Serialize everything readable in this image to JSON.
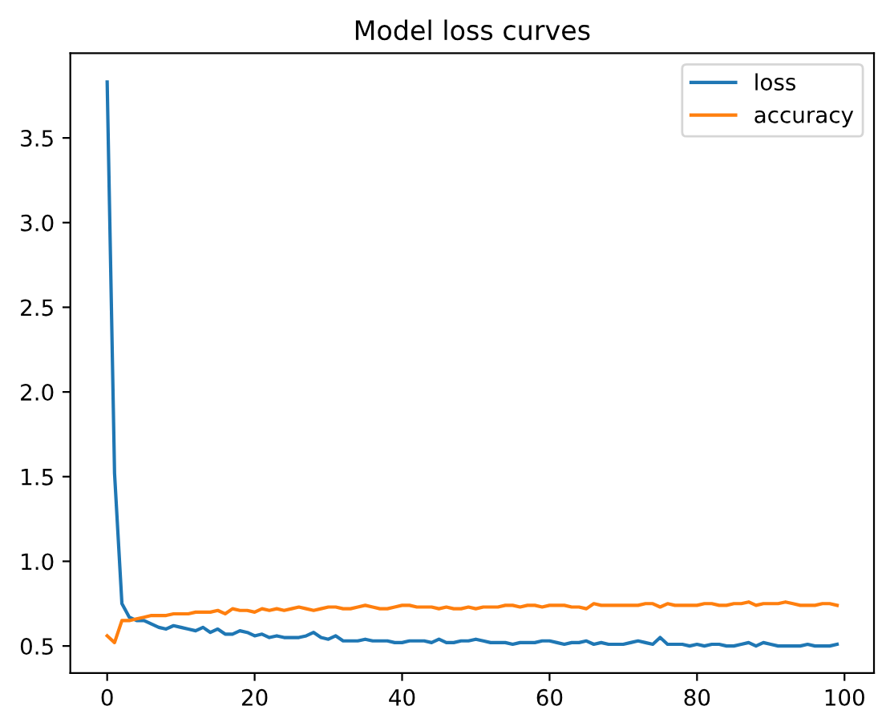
{
  "chart_data": {
    "type": "line",
    "title": "Model loss curves",
    "x": [
      0,
      1,
      2,
      3,
      4,
      5,
      6,
      7,
      8,
      9,
      10,
      11,
      12,
      13,
      14,
      15,
      16,
      17,
      18,
      19,
      20,
      21,
      22,
      23,
      24,
      25,
      26,
      27,
      28,
      29,
      30,
      31,
      32,
      33,
      34,
      35,
      36,
      37,
      38,
      39,
      40,
      41,
      42,
      43,
      44,
      45,
      46,
      47,
      48,
      49,
      50,
      51,
      52,
      53,
      54,
      55,
      56,
      57,
      58,
      59,
      60,
      61,
      62,
      63,
      64,
      65,
      66,
      67,
      68,
      69,
      70,
      71,
      72,
      73,
      74,
      75,
      76,
      77,
      78,
      79,
      80,
      81,
      82,
      83,
      84,
      85,
      86,
      87,
      88,
      89,
      90,
      91,
      92,
      93,
      94,
      95,
      96,
      97,
      98,
      99
    ],
    "series": [
      {
        "name": "loss",
        "color": "#1f77b4",
        "values": [
          3.83,
          1.52,
          0.75,
          0.67,
          0.65,
          0.65,
          0.63,
          0.61,
          0.6,
          0.62,
          0.61,
          0.6,
          0.59,
          0.61,
          0.58,
          0.6,
          0.57,
          0.57,
          0.59,
          0.58,
          0.56,
          0.57,
          0.55,
          0.56,
          0.55,
          0.55,
          0.55,
          0.56,
          0.58,
          0.55,
          0.54,
          0.56,
          0.53,
          0.53,
          0.53,
          0.54,
          0.53,
          0.53,
          0.53,
          0.52,
          0.52,
          0.53,
          0.53,
          0.53,
          0.52,
          0.54,
          0.52,
          0.52,
          0.53,
          0.53,
          0.54,
          0.53,
          0.52,
          0.52,
          0.52,
          0.51,
          0.52,
          0.52,
          0.52,
          0.53,
          0.53,
          0.52,
          0.51,
          0.52,
          0.52,
          0.53,
          0.51,
          0.52,
          0.51,
          0.51,
          0.51,
          0.52,
          0.53,
          0.52,
          0.51,
          0.55,
          0.51,
          0.51,
          0.51,
          0.5,
          0.51,
          0.5,
          0.51,
          0.51,
          0.5,
          0.5,
          0.51,
          0.52,
          0.5,
          0.52,
          0.51,
          0.5,
          0.5,
          0.5,
          0.5,
          0.51,
          0.5,
          0.5,
          0.5,
          0.51
        ]
      },
      {
        "name": "accuracy",
        "color": "#ff7f0e",
        "values": [
          0.56,
          0.52,
          0.65,
          0.65,
          0.66,
          0.67,
          0.68,
          0.68,
          0.68,
          0.69,
          0.69,
          0.69,
          0.7,
          0.7,
          0.7,
          0.71,
          0.69,
          0.72,
          0.71,
          0.71,
          0.7,
          0.72,
          0.71,
          0.72,
          0.71,
          0.72,
          0.73,
          0.72,
          0.71,
          0.72,
          0.73,
          0.73,
          0.72,
          0.72,
          0.73,
          0.74,
          0.73,
          0.72,
          0.72,
          0.73,
          0.74,
          0.74,
          0.73,
          0.73,
          0.73,
          0.72,
          0.73,
          0.72,
          0.72,
          0.73,
          0.72,
          0.73,
          0.73,
          0.73,
          0.74,
          0.74,
          0.73,
          0.74,
          0.74,
          0.73,
          0.74,
          0.74,
          0.74,
          0.73,
          0.73,
          0.72,
          0.75,
          0.74,
          0.74,
          0.74,
          0.74,
          0.74,
          0.74,
          0.75,
          0.75,
          0.73,
          0.75,
          0.74,
          0.74,
          0.74,
          0.74,
          0.75,
          0.75,
          0.74,
          0.74,
          0.75,
          0.75,
          0.76,
          0.74,
          0.75,
          0.75,
          0.75,
          0.76,
          0.75,
          0.74,
          0.74,
          0.74,
          0.75,
          0.75,
          0.74
        ]
      }
    ],
    "xlim": [
      -5,
      104
    ],
    "xticks": [
      0,
      20,
      40,
      60,
      80,
      100
    ],
    "ylim": [
      0.34,
      4.0
    ],
    "yticks": [
      0.5,
      {
        "value": 1,
        "label": "1.0"
      },
      1.5,
      {
        "value": 2,
        "label": "2.0"
      },
      2.5,
      {
        "value": 3,
        "label": "3.0"
      },
      3.5
    ],
    "legend": "top right",
    "grid": false,
    "marker": "none",
    "line_style": "solid"
  }
}
